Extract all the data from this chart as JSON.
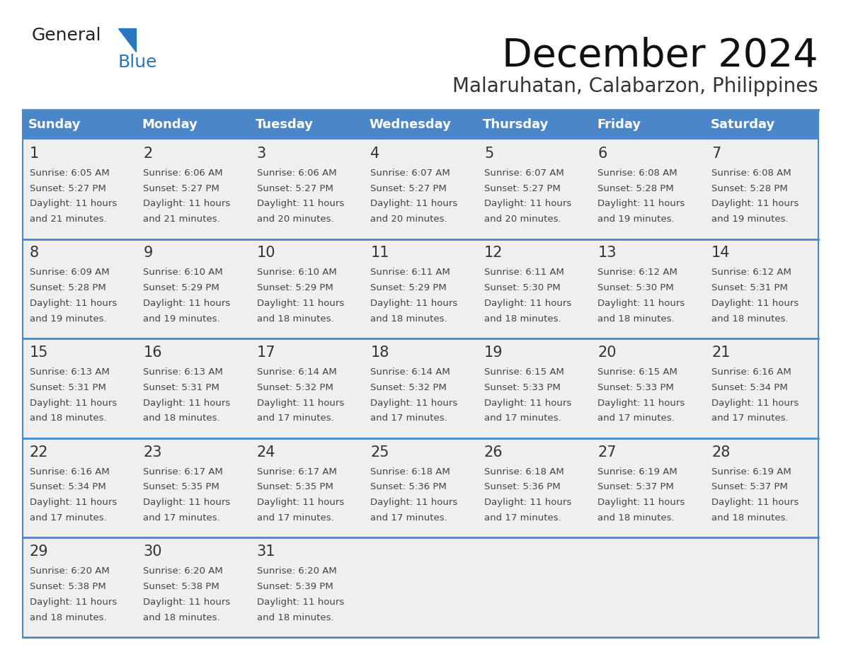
{
  "title": "December 2024",
  "subtitle": "Malaruhatan, Calabarzon, Philippines",
  "header_color": "#4a86c8",
  "header_text_color": "#ffffff",
  "cell_bg_color": "#efefef",
  "border_line_color": "#4a86c8",
  "day_headers": [
    "Sunday",
    "Monday",
    "Tuesday",
    "Wednesday",
    "Thursday",
    "Friday",
    "Saturday"
  ],
  "days": [
    {
      "day": 1,
      "col": 0,
      "row": 0,
      "sunrise": "6:05 AM",
      "sunset": "5:27 PM",
      "daylight_hours": 11,
      "daylight_minutes": 21
    },
    {
      "day": 2,
      "col": 1,
      "row": 0,
      "sunrise": "6:06 AM",
      "sunset": "5:27 PM",
      "daylight_hours": 11,
      "daylight_minutes": 21
    },
    {
      "day": 3,
      "col": 2,
      "row": 0,
      "sunrise": "6:06 AM",
      "sunset": "5:27 PM",
      "daylight_hours": 11,
      "daylight_minutes": 20
    },
    {
      "day": 4,
      "col": 3,
      "row": 0,
      "sunrise": "6:07 AM",
      "sunset": "5:27 PM",
      "daylight_hours": 11,
      "daylight_minutes": 20
    },
    {
      "day": 5,
      "col": 4,
      "row": 0,
      "sunrise": "6:07 AM",
      "sunset": "5:27 PM",
      "daylight_hours": 11,
      "daylight_minutes": 20
    },
    {
      "day": 6,
      "col": 5,
      "row": 0,
      "sunrise": "6:08 AM",
      "sunset": "5:28 PM",
      "daylight_hours": 11,
      "daylight_minutes": 19
    },
    {
      "day": 7,
      "col": 6,
      "row": 0,
      "sunrise": "6:08 AM",
      "sunset": "5:28 PM",
      "daylight_hours": 11,
      "daylight_minutes": 19
    },
    {
      "day": 8,
      "col": 0,
      "row": 1,
      "sunrise": "6:09 AM",
      "sunset": "5:28 PM",
      "daylight_hours": 11,
      "daylight_minutes": 19
    },
    {
      "day": 9,
      "col": 1,
      "row": 1,
      "sunrise": "6:10 AM",
      "sunset": "5:29 PM",
      "daylight_hours": 11,
      "daylight_minutes": 19
    },
    {
      "day": 10,
      "col": 2,
      "row": 1,
      "sunrise": "6:10 AM",
      "sunset": "5:29 PM",
      "daylight_hours": 11,
      "daylight_minutes": 18
    },
    {
      "day": 11,
      "col": 3,
      "row": 1,
      "sunrise": "6:11 AM",
      "sunset": "5:29 PM",
      "daylight_hours": 11,
      "daylight_minutes": 18
    },
    {
      "day": 12,
      "col": 4,
      "row": 1,
      "sunrise": "6:11 AM",
      "sunset": "5:30 PM",
      "daylight_hours": 11,
      "daylight_minutes": 18
    },
    {
      "day": 13,
      "col": 5,
      "row": 1,
      "sunrise": "6:12 AM",
      "sunset": "5:30 PM",
      "daylight_hours": 11,
      "daylight_minutes": 18
    },
    {
      "day": 14,
      "col": 6,
      "row": 1,
      "sunrise": "6:12 AM",
      "sunset": "5:31 PM",
      "daylight_hours": 11,
      "daylight_minutes": 18
    },
    {
      "day": 15,
      "col": 0,
      "row": 2,
      "sunrise": "6:13 AM",
      "sunset": "5:31 PM",
      "daylight_hours": 11,
      "daylight_minutes": 18
    },
    {
      "day": 16,
      "col": 1,
      "row": 2,
      "sunrise": "6:13 AM",
      "sunset": "5:31 PM",
      "daylight_hours": 11,
      "daylight_minutes": 18
    },
    {
      "day": 17,
      "col": 2,
      "row": 2,
      "sunrise": "6:14 AM",
      "sunset": "5:32 PM",
      "daylight_hours": 11,
      "daylight_minutes": 17
    },
    {
      "day": 18,
      "col": 3,
      "row": 2,
      "sunrise": "6:14 AM",
      "sunset": "5:32 PM",
      "daylight_hours": 11,
      "daylight_minutes": 17
    },
    {
      "day": 19,
      "col": 4,
      "row": 2,
      "sunrise": "6:15 AM",
      "sunset": "5:33 PM",
      "daylight_hours": 11,
      "daylight_minutes": 17
    },
    {
      "day": 20,
      "col": 5,
      "row": 2,
      "sunrise": "6:15 AM",
      "sunset": "5:33 PM",
      "daylight_hours": 11,
      "daylight_minutes": 17
    },
    {
      "day": 21,
      "col": 6,
      "row": 2,
      "sunrise": "6:16 AM",
      "sunset": "5:34 PM",
      "daylight_hours": 11,
      "daylight_minutes": 17
    },
    {
      "day": 22,
      "col": 0,
      "row": 3,
      "sunrise": "6:16 AM",
      "sunset": "5:34 PM",
      "daylight_hours": 11,
      "daylight_minutes": 17
    },
    {
      "day": 23,
      "col": 1,
      "row": 3,
      "sunrise": "6:17 AM",
      "sunset": "5:35 PM",
      "daylight_hours": 11,
      "daylight_minutes": 17
    },
    {
      "day": 24,
      "col": 2,
      "row": 3,
      "sunrise": "6:17 AM",
      "sunset": "5:35 PM",
      "daylight_hours": 11,
      "daylight_minutes": 17
    },
    {
      "day": 25,
      "col": 3,
      "row": 3,
      "sunrise": "6:18 AM",
      "sunset": "5:36 PM",
      "daylight_hours": 11,
      "daylight_minutes": 17
    },
    {
      "day": 26,
      "col": 4,
      "row": 3,
      "sunrise": "6:18 AM",
      "sunset": "5:36 PM",
      "daylight_hours": 11,
      "daylight_minutes": 17
    },
    {
      "day": 27,
      "col": 5,
      "row": 3,
      "sunrise": "6:19 AM",
      "sunset": "5:37 PM",
      "daylight_hours": 11,
      "daylight_minutes": 18
    },
    {
      "day": 28,
      "col": 6,
      "row": 3,
      "sunrise": "6:19 AM",
      "sunset": "5:37 PM",
      "daylight_hours": 11,
      "daylight_minutes": 18
    },
    {
      "day": 29,
      "col": 0,
      "row": 4,
      "sunrise": "6:20 AM",
      "sunset": "5:38 PM",
      "daylight_hours": 11,
      "daylight_minutes": 18
    },
    {
      "day": 30,
      "col": 1,
      "row": 4,
      "sunrise": "6:20 AM",
      "sunset": "5:38 PM",
      "daylight_hours": 11,
      "daylight_minutes": 18
    },
    {
      "day": 31,
      "col": 2,
      "row": 4,
      "sunrise": "6:20 AM",
      "sunset": "5:39 PM",
      "daylight_hours": 11,
      "daylight_minutes": 18
    }
  ],
  "num_rows": 5,
  "num_cols": 7,
  "logo_text_general": "General",
  "logo_text_blue": "Blue",
  "logo_color_general": "#222222",
  "logo_color_blue": "#2878c0",
  "logo_triangle_color": "#2878c0",
  "cell_text_color": "#444444",
  "day_number_color": "#333333",
  "title_fontsize": 40,
  "subtitle_fontsize": 20,
  "header_fontsize": 13,
  "day_num_fontsize": 15,
  "cell_fontsize": 9.5
}
